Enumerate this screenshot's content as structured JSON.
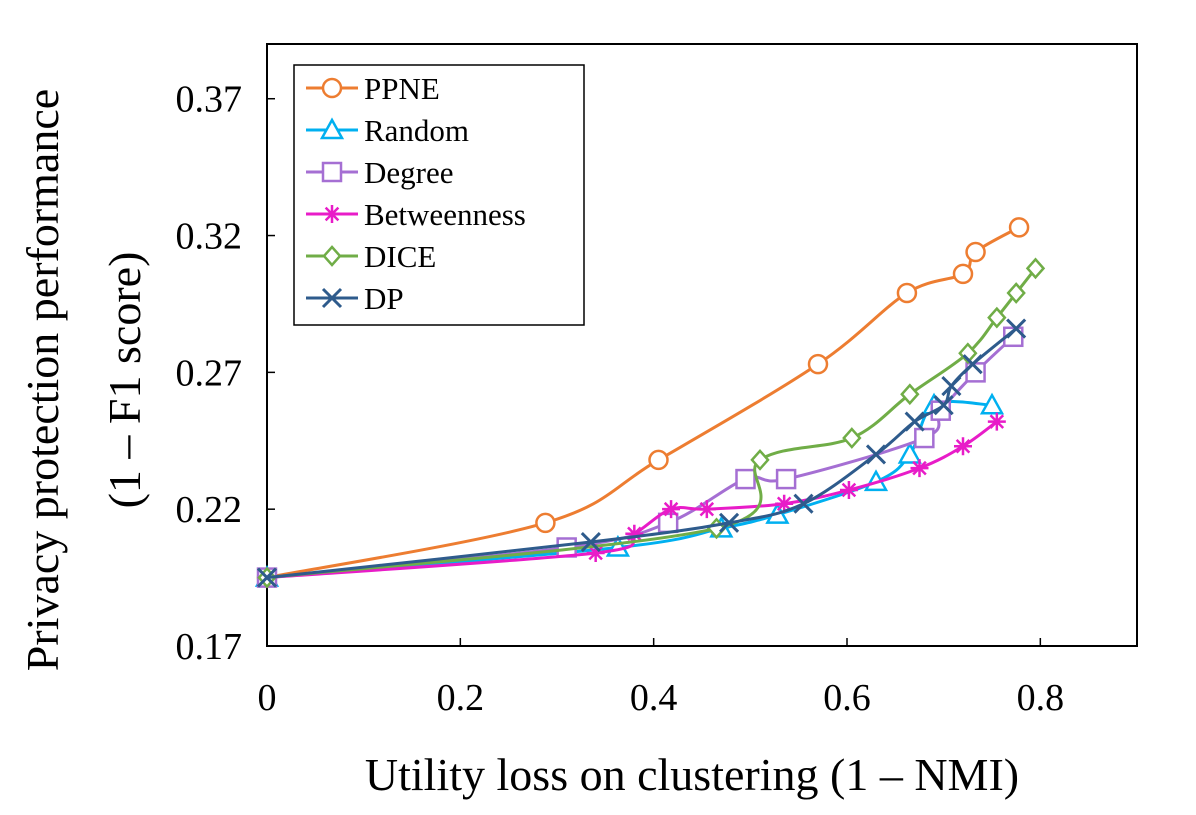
{
  "chart_data": {
    "type": "line",
    "title": "",
    "xlabel": "Utility loss on clustering (1 – NMI)",
    "ylabel_line1": "Privacy protection performance",
    "ylabel_line2": "(1 – F1 score)",
    "xlim": [
      0,
      0.9
    ],
    "ylim": [
      0.17,
      0.39
    ],
    "xticks": [
      0,
      0.2,
      0.4,
      0.6,
      0.8
    ],
    "xtick_labels": [
      "0",
      "0.2",
      "0.4",
      "0.6",
      "0.8"
    ],
    "yticks": [
      0.17,
      0.22,
      0.27,
      0.32,
      0.37
    ],
    "ytick_labels": [
      "0.17",
      "0.22",
      "0.27",
      "0.32",
      "0.37"
    ],
    "grid": false,
    "legend_position": "top-left",
    "series": [
      {
        "name": "PPNE",
        "color": "#ED7D31",
        "marker": "circle",
        "x": [
          0,
          0.288,
          0.405,
          0.57,
          0.662,
          0.72,
          0.733,
          0.778
        ],
        "y": [
          0.195,
          0.215,
          0.238,
          0.273,
          0.299,
          0.306,
          0.314,
          0.323
        ]
      },
      {
        "name": "Random",
        "color": "#00B0F0",
        "marker": "triangle",
        "x": [
          0,
          0.363,
          0.47,
          0.528,
          0.63,
          0.665,
          0.69,
          0.75
        ],
        "y": [
          0.195,
          0.206,
          0.213,
          0.218,
          0.23,
          0.24,
          0.258,
          0.258
        ]
      },
      {
        "name": "Degree",
        "color": "#A56FD3",
        "marker": "square",
        "x": [
          0,
          0.31,
          0.415,
          0.495,
          0.537,
          0.68,
          0.697,
          0.733,
          0.772
        ],
        "y": [
          0.195,
          0.206,
          0.215,
          0.231,
          0.231,
          0.246,
          0.256,
          0.27,
          0.283
        ]
      },
      {
        "name": "Betweenness",
        "color": "#E81CC8",
        "marker": "asterisk",
        "x": [
          0,
          0.34,
          0.38,
          0.418,
          0.455,
          0.535,
          0.602,
          0.675,
          0.72,
          0.755
        ],
        "y": [
          0.195,
          0.204,
          0.211,
          0.22,
          0.22,
          0.222,
          0.227,
          0.235,
          0.243,
          0.252
        ]
      },
      {
        "name": "DICE",
        "color": "#70AD47",
        "marker": "diamond",
        "x": [
          0,
          0.465,
          0.51,
          0.605,
          0.665,
          0.725,
          0.755,
          0.775,
          0.795
        ],
        "y": [
          0.195,
          0.213,
          0.238,
          0.246,
          0.262,
          0.277,
          0.29,
          0.299,
          0.308
        ]
      },
      {
        "name": "DP",
        "color": "#2E5B8C",
        "marker": "x",
        "x": [
          0,
          0.335,
          0.478,
          0.555,
          0.63,
          0.67,
          0.7,
          0.708,
          0.73,
          0.775
        ],
        "y": [
          0.195,
          0.208,
          0.215,
          0.222,
          0.24,
          0.252,
          0.258,
          0.265,
          0.273,
          0.286
        ]
      }
    ]
  }
}
